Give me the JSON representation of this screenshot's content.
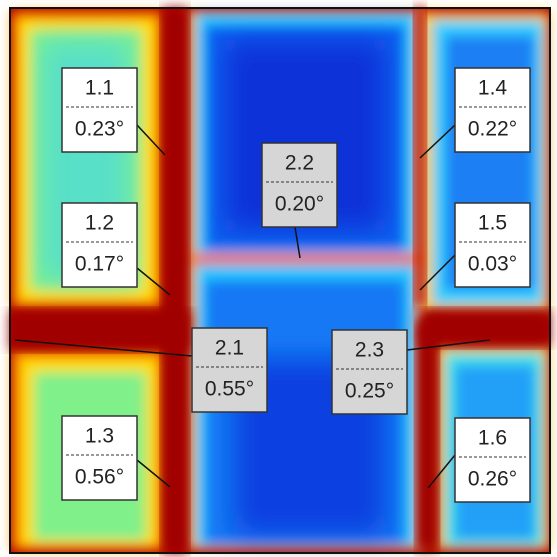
{
  "labels": [
    {
      "id": "1.1",
      "angle": "0.23°"
    },
    {
      "id": "1.2",
      "angle": "0.17°"
    },
    {
      "id": "1.3",
      "angle": "0.56°"
    },
    {
      "id": "1.4",
      "angle": "0.22°"
    },
    {
      "id": "1.5",
      "angle": "0.03°"
    },
    {
      "id": "1.6",
      "angle": "0.26°"
    },
    {
      "id": "2.1",
      "angle": "0.55°"
    },
    {
      "id": "2.2",
      "angle": "0.20°"
    },
    {
      "id": "2.3",
      "angle": "0.25°"
    }
  ]
}
